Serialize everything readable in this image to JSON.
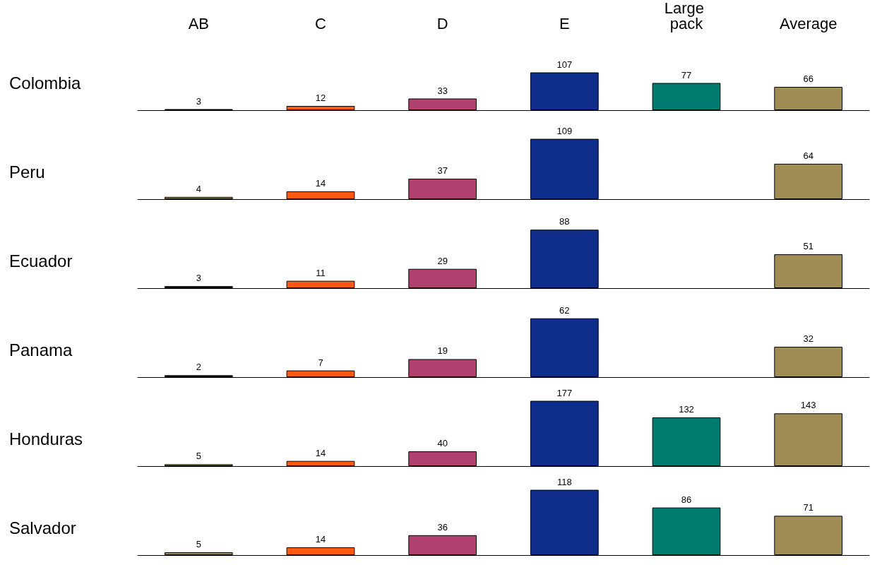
{
  "chart_data": [
    {
      "type": "bar",
      "title": "Colombia",
      "categories": [
        "AB",
        "C",
        "D",
        "E",
        "Large pack",
        "Average"
      ],
      "values": [
        3,
        12,
        33,
        107,
        77,
        66
      ],
      "colors": [
        "#1a1a1a",
        "#ff5a0f",
        "#b0416e",
        "#0f2d8a",
        "#007b70",
        "#a08c55"
      ],
      "data_labels": true
    },
    {
      "type": "bar",
      "title": "Peru",
      "categories": [
        "AB",
        "C",
        "D",
        "E",
        "Large pack",
        "Average"
      ],
      "values": [
        4,
        14,
        37,
        109,
        null,
        64
      ],
      "colors": [
        "#a08c55",
        "#ff5a0f",
        "#b0416e",
        "#0f2d8a",
        "#007b70",
        "#a08c55"
      ],
      "data_labels": true,
      "tick_labels": false
    },
    {
      "type": "bar",
      "title": "Ecuador",
      "categories": [
        "AB",
        "C",
        "D",
        "E",
        "Large pack",
        "Average"
      ],
      "values": [
        3,
        11,
        29,
        88,
        null,
        51
      ],
      "colors": [
        "#1a1a1a",
        "#ff5a0f",
        "#b0416e",
        "#0f2d8a",
        "#007b70",
        "#a08c55"
      ],
      "data_labels": true,
      "tick_labels": false
    },
    {
      "type": "bar",
      "title": "Panama",
      "categories": [
        "AB",
        "C",
        "D",
        "E",
        "Large pack",
        "Average"
      ],
      "values": [
        2,
        7,
        19,
        62,
        null,
        32
      ],
      "colors": [
        "#1a1a1a",
        "#ff5a0f",
        "#b0416e",
        "#0f2d8a",
        "#007b70",
        "#a08c55"
      ],
      "data_labels": true,
      "tick_labels": false
    },
    {
      "type": "bar",
      "title": "Honduras",
      "categories": [
        "AB",
        "C",
        "D",
        "E",
        "Large pack",
        "Average"
      ],
      "values": [
        5,
        14,
        40,
        177,
        132,
        143
      ],
      "colors": [
        "#a08c55",
        "#ff5a0f",
        "#b0416e",
        "#0f2d8a",
        "#007b70",
        "#a08c55"
      ],
      "data_labels": true,
      "tick_labels": false
    },
    {
      "type": "bar",
      "title": "Salvador",
      "categories": [
        "AB",
        "C",
        "D",
        "E",
        "Large pack",
        "Average"
      ],
      "values": [
        5,
        14,
        36,
        118,
        86,
        71
      ],
      "colors": [
        "#a08c55",
        "#ff5a0f",
        "#b0416e",
        "#0f2d8a",
        "#007b70",
        "#a08c55"
      ],
      "data_labels": true,
      "tick_labels": false
    }
  ]
}
